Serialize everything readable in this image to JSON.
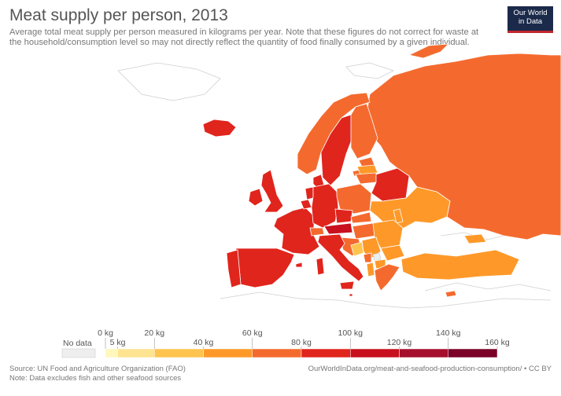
{
  "header": {
    "title": "Meat supply per person, 2013",
    "subtitle": "Average total meat supply per person measured in kilograms per year. Note that these figures do not correct for waste at the household/consumption level so may not directly reflect the quantity of food finally consumed by a given individual."
  },
  "logo": {
    "line1": "Our World",
    "line2": "in Data"
  },
  "legend": {
    "nodata_label": "No data",
    "bins": [
      {
        "from_kg": 0,
        "to_kg": 5,
        "color": "#fff7bc"
      },
      {
        "from_kg": 5,
        "to_kg": 20,
        "color": "#fee391"
      },
      {
        "from_kg": 20,
        "to_kg": 40,
        "color": "#fec44f"
      },
      {
        "from_kg": 40,
        "to_kg": 60,
        "color": "#fe9929"
      },
      {
        "from_kg": 60,
        "to_kg": 80,
        "color": "#f46a2e"
      },
      {
        "from_kg": 80,
        "to_kg": 100,
        "color": "#e0251d"
      },
      {
        "from_kg": 100,
        "to_kg": 120,
        "color": "#c8101f"
      },
      {
        "from_kg": 120,
        "to_kg": 140,
        "color": "#a50f2d"
      },
      {
        "from_kg": 140,
        "to_kg": 160,
        "color": "#7a0028"
      }
    ],
    "labels": [
      "0 kg",
      "5 kg",
      "20 kg",
      "40 kg",
      "60 kg",
      "80 kg",
      "100 kg",
      "120 kg",
      "140 kg",
      "160 kg"
    ]
  },
  "colors": {
    "nodata": "#eeeeee",
    "border": "#ffffff",
    "land_outline": "#cfcfcf"
  },
  "footer": {
    "source": "Source: UN Food and Agriculture Organization (FAO)",
    "note": "Note: Data excludes fish and other seafood sources",
    "url": "OurWorldInData.org/meat-and-seafood-production-consumption/ • CC BY"
  }
}
